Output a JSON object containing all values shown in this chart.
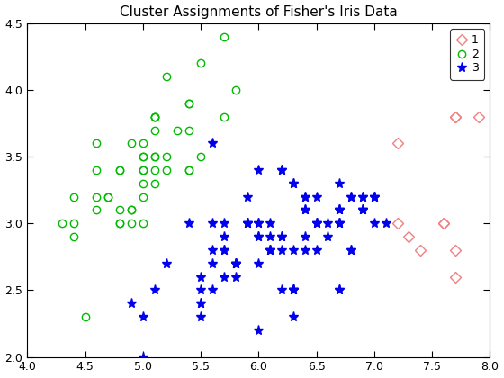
{
  "title": "Cluster Assignments of Fisher's Iris Data",
  "xlim": [
    4,
    8
  ],
  "ylim": [
    2,
    4.5
  ],
  "xticks": [
    4,
    4.5,
    5,
    5.5,
    6,
    6.5,
    7,
    7.5,
    8
  ],
  "yticks": [
    2,
    2.5,
    3,
    3.5,
    4,
    4.5
  ],
  "cluster1_x": [
    7.7,
    7.9,
    7.7,
    7.6,
    7.3,
    7.2,
    7.4,
    7.7,
    7.7,
    7.2,
    7.6
  ],
  "cluster1_y": [
    3.8,
    3.8,
    2.6,
    3.0,
    2.9,
    3.0,
    2.8,
    3.8,
    2.8,
    3.6,
    3.0
  ],
  "cluster2_x": [
    5.1,
    4.9,
    4.7,
    4.6,
    5.0,
    5.4,
    4.6,
    5.0,
    4.4,
    4.9,
    5.4,
    4.8,
    4.8,
    4.3,
    5.8,
    5.7,
    5.4,
    5.1,
    5.7,
    5.1,
    5.4,
    5.1,
    4.6,
    5.1,
    4.8,
    5.0,
    5.0,
    5.2,
    5.2,
    4.7,
    4.8,
    5.4,
    5.2,
    5.5,
    4.9,
    5.0,
    5.5,
    4.9,
    4.4,
    5.1,
    5.0,
    4.5,
    4.4,
    5.0,
    5.1,
    4.8,
    5.1,
    4.6,
    5.3,
    5.0
  ],
  "cluster2_y": [
    3.5,
    3.0,
    3.2,
    3.1,
    3.6,
    3.9,
    3.4,
    3.4,
    2.9,
    3.1,
    3.7,
    3.4,
    3.0,
    3.0,
    4.0,
    4.4,
    3.9,
    3.5,
    3.8,
    3.8,
    3.4,
    3.7,
    3.6,
    3.3,
    3.4,
    3.0,
    3.4,
    3.5,
    3.4,
    3.2,
    3.1,
    3.4,
    4.1,
    4.2,
    3.1,
    3.2,
    3.5,
    3.6,
    3.0,
    3.4,
    3.5,
    2.3,
    3.2,
    3.5,
    3.8,
    3.0,
    3.8,
    3.2,
    3.7,
    3.3
  ],
  "cluster3_x": [
    7.0,
    6.4,
    6.9,
    5.5,
    6.5,
    5.7,
    6.3,
    4.9,
    6.6,
    5.2,
    5.0,
    5.9,
    6.0,
    6.1,
    5.6,
    6.7,
    5.6,
    5.8,
    6.2,
    5.6,
    5.9,
    6.1,
    6.3,
    6.1,
    6.4,
    6.6,
    6.8,
    6.7,
    6.0,
    5.7,
    5.5,
    5.5,
    5.8,
    6.0,
    5.4,
    6.0,
    6.7,
    6.3,
    5.6,
    5.5,
    5.5,
    6.1,
    5.8,
    5.0,
    5.6,
    5.7,
    5.7,
    6.2,
    5.1,
    5.7,
    7.1,
    6.3,
    6.5,
    6.2,
    5.9,
    6.0,
    6.8,
    6.3,
    6.5,
    6.2,
    5.8,
    6.3,
    6.7,
    6.2,
    6.4,
    6.1,
    6.4,
    6.0,
    6.9,
    6.7,
    6.9,
    5.8,
    6.8,
    6.7,
    6.7,
    6.3,
    6.5,
    6.2,
    5.9,
    6.7,
    6.4,
    6.8,
    6.4,
    6.0,
    6.9,
    6.7,
    6.9,
    7.0,
    6.5,
    7.0,
    6.3,
    7.0
  ],
  "cluster3_y": [
    3.2,
    3.2,
    3.1,
    2.3,
    2.8,
    2.8,
    3.3,
    2.4,
    2.9,
    2.7,
    2.0,
    3.0,
    2.9,
    2.9,
    2.5,
    2.5,
    3.6,
    2.7,
    2.5,
    2.8,
    3.2,
    2.8,
    2.5,
    2.8,
    2.9,
    3.0,
    2.8,
    3.0,
    2.9,
    2.6,
    2.4,
    2.4,
    2.7,
    2.7,
    3.0,
    3.4,
    3.1,
    2.3,
    3.0,
    2.5,
    2.6,
    3.0,
    2.6,
    2.3,
    2.7,
    3.0,
    2.9,
    2.9,
    2.5,
    2.8,
    3.0,
    2.5,
    3.0,
    2.8,
    3.0,
    2.2,
    3.2,
    2.5,
    3.0,
    3.4,
    2.7,
    2.8,
    3.0,
    2.9,
    2.8,
    2.8,
    3.2,
    3.0,
    3.1,
    3.1,
    3.1,
    2.7,
    3.2,
    3.3,
    3.0,
    2.5,
    3.0,
    3.4,
    3.0,
    2.5,
    3.1,
    2.8,
    3.1,
    3.0,
    3.2,
    3.1,
    3.2,
    3.2,
    3.2,
    3.0,
    3.3,
    3.2
  ],
  "color1": "#F08080",
  "color2": "#00BB00",
  "color3": "#0000EE",
  "marker1": "D",
  "marker2": "o",
  "marker3": "*",
  "markersize1": 6,
  "markersize2": 6,
  "markersize3": 8,
  "legend_labels": [
    "1",
    "2",
    "3"
  ]
}
